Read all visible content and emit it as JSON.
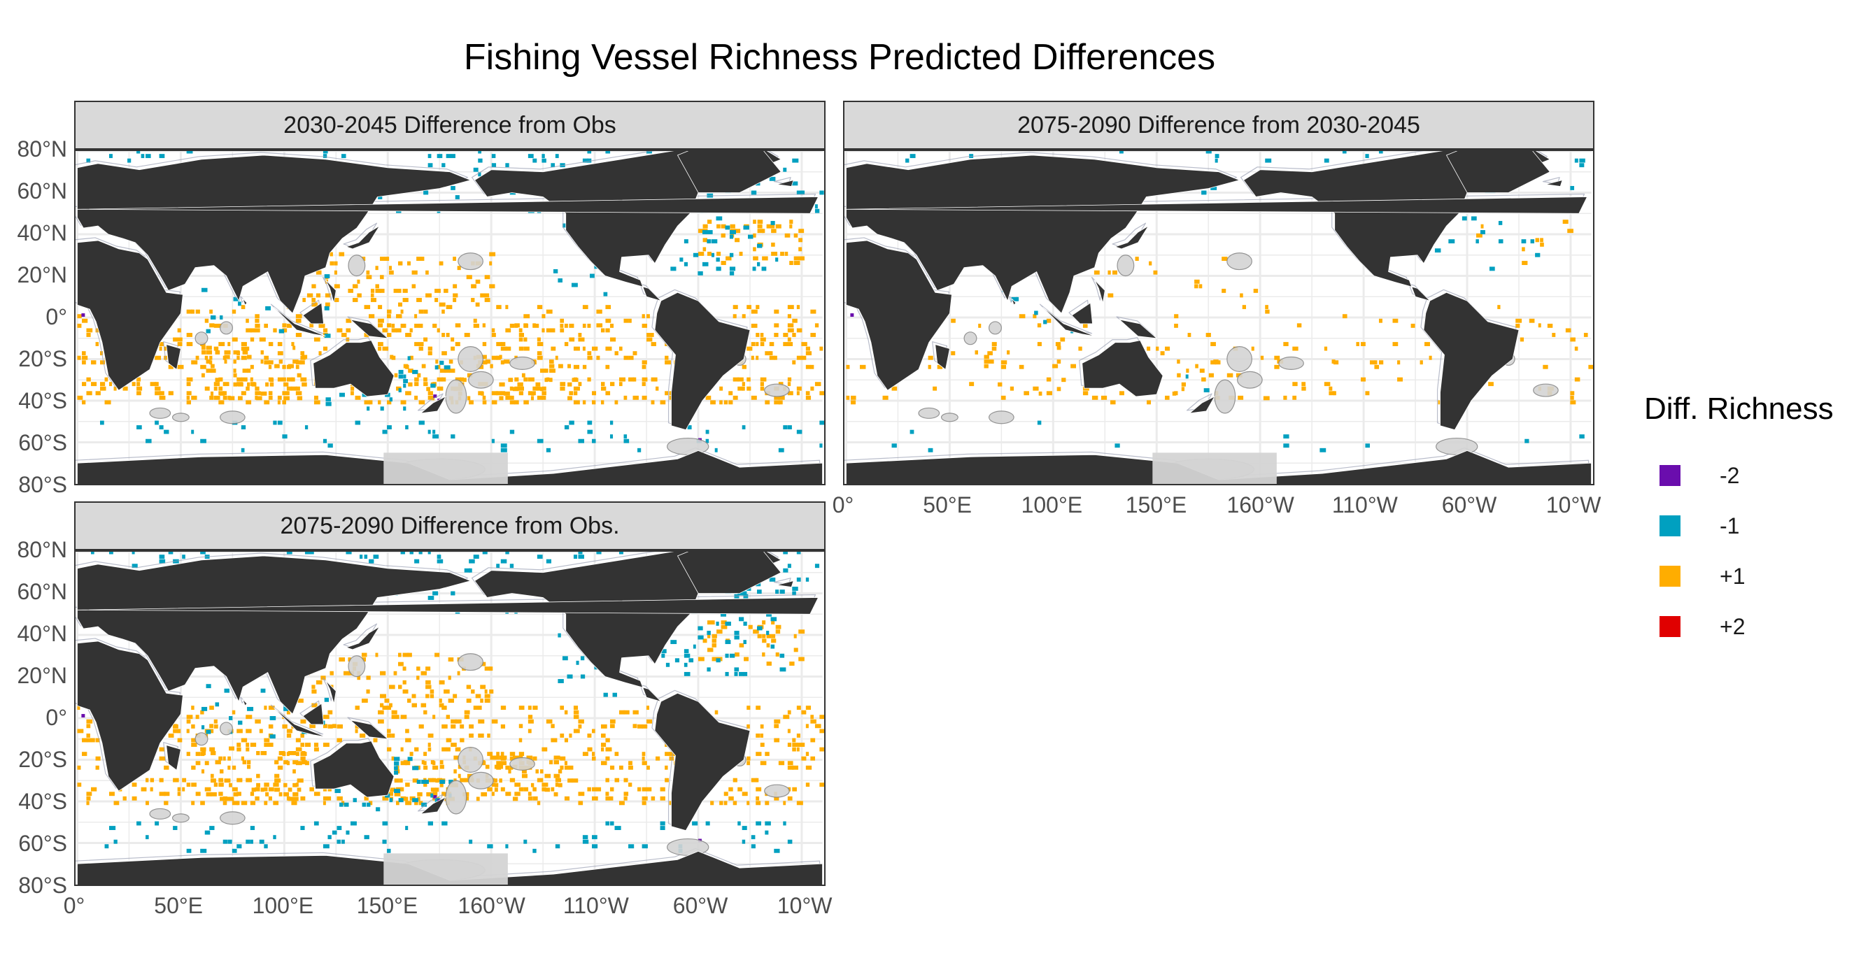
{
  "title": "Fishing Vessel Richness Predicted Differences",
  "panels": [
    {
      "label": "2030-2045 Difference from Obs",
      "scene": 0
    },
    {
      "label": "2075-2090 Difference from 2030-2045",
      "scene": 1
    },
    {
      "label": "2075-2090 Difference from Obs.",
      "scene": 2
    }
  ],
  "x_ticks": [
    "0°",
    "50°E",
    "100°E",
    "150°E",
    "160°W",
    "110°W",
    "60°W",
    "10°W"
  ],
  "y_ticks": [
    "80°N",
    "60°N",
    "40°N",
    "20°N",
    "0°",
    "20°S",
    "40°S",
    "60°S",
    "80°S"
  ],
  "legend": {
    "title": "Diff. Richness",
    "items": [
      {
        "label": "-2",
        "color": "#6a0dad"
      },
      {
        "label": "-1",
        "color": "#00a0c0"
      },
      {
        "label": "+1",
        "color": "#ffad00"
      },
      {
        "label": "+2",
        "color": "#e00000"
      }
    ]
  },
  "colors": {
    "land": "#333333",
    "protected_area": "#d4d4d4",
    "grid": "#ebebeb",
    "strip": "#d9d9d9"
  }
}
